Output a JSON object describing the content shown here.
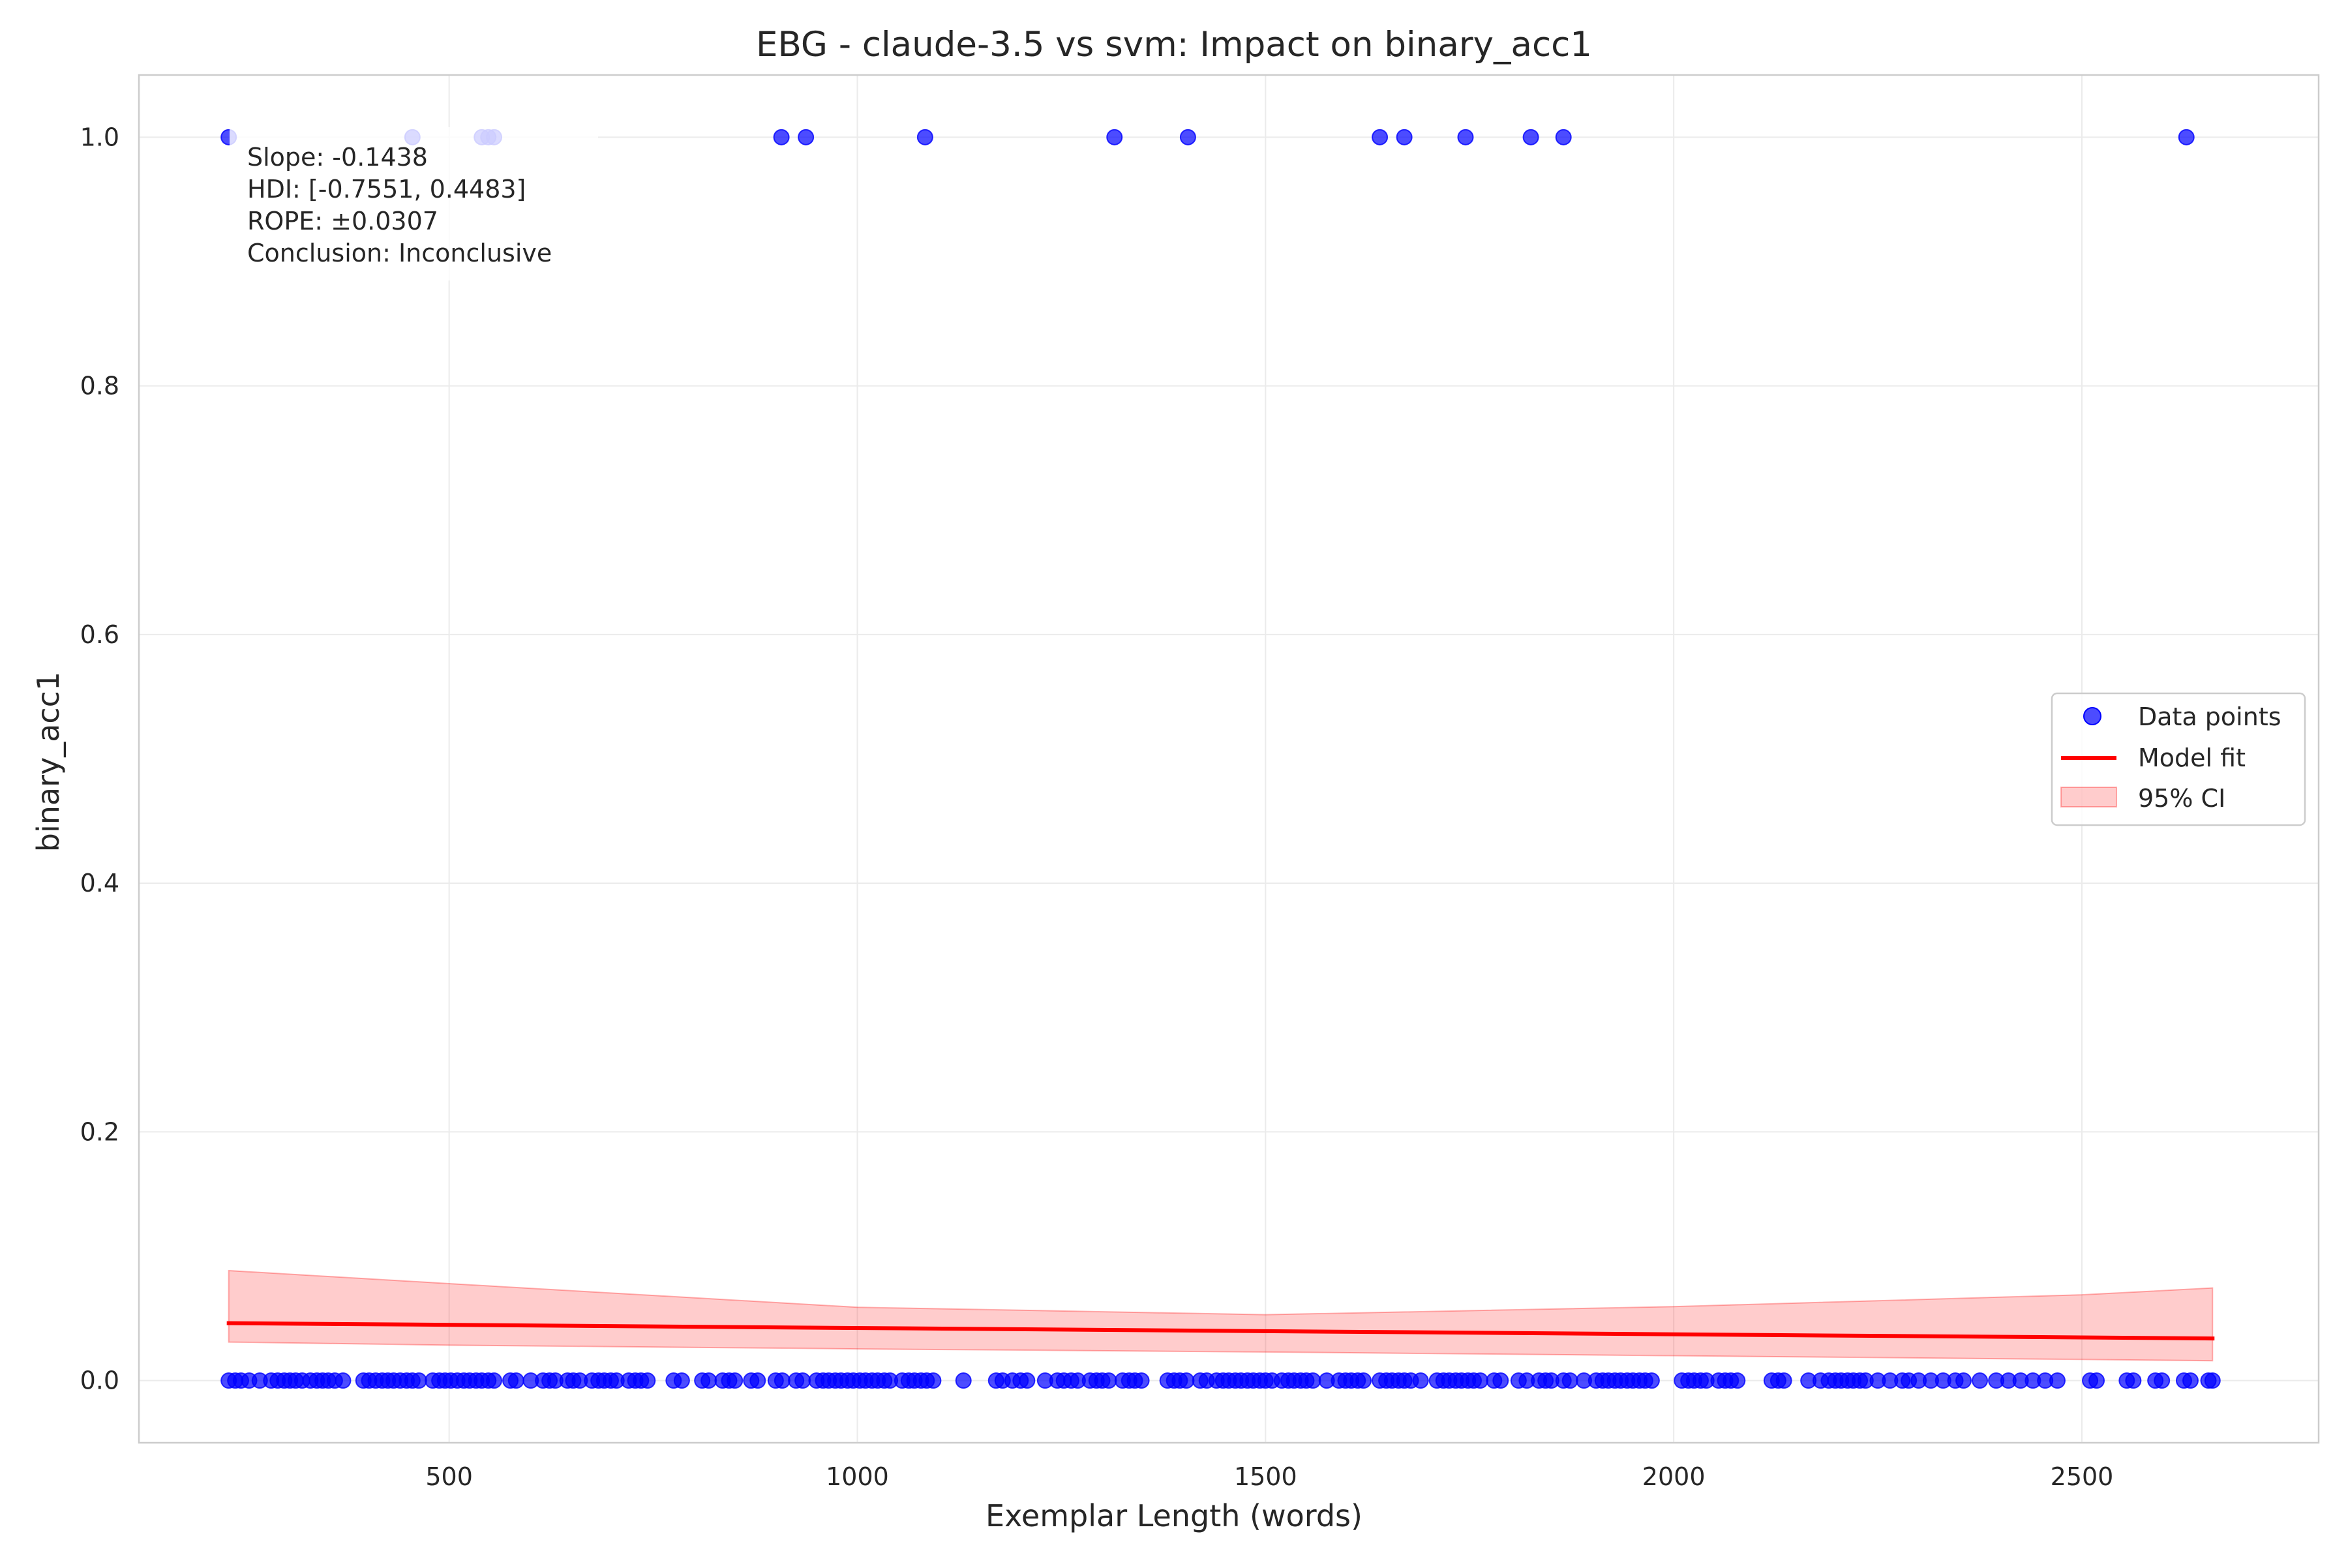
{
  "chart_data": {
    "type": "scatter",
    "title": "EBG - claude-3.5 vs svm: Impact on binary_acc1",
    "xlabel": "Exemplar Length (words)",
    "ylabel": "binary_acc1",
    "xlim": [
      120,
      2790
    ],
    "ylim": [
      -0.05,
      1.05
    ],
    "xticks": [
      500,
      1000,
      1500,
      2000,
      2500
    ],
    "yticks": [
      0.0,
      0.2,
      0.4,
      0.6,
      0.8,
      1.0
    ],
    "xtick_labels": [
      "500",
      "1000",
      "1500",
      "2000",
      "2500"
    ],
    "ytick_labels": [
      "0.0",
      "0.2",
      "0.4",
      "0.6",
      "0.8",
      "1.0"
    ],
    "grid": true,
    "legend_position": "center-right",
    "legend": [
      {
        "label": "Data points",
        "kind": "marker",
        "color": "#0000ff"
      },
      {
        "label": "Model fit",
        "kind": "line",
        "color": "#ff0000"
      },
      {
        "label": "95% CI",
        "kind": "patch",
        "color": "#ff0000"
      }
    ],
    "annotation": [
      "Slope: -0.1438",
      "HDI: [-0.7551, 0.4483]",
      "ROPE: ±0.0307",
      "Conclusion: Inconclusive"
    ],
    "series": [
      {
        "name": "Data points",
        "kind": "scatter",
        "color": "#0000ff",
        "points_y1": [
          230,
          455,
          540,
          548,
          555,
          907,
          937,
          1083,
          1315,
          1405,
          1640,
          1670,
          1745,
          1825,
          1865,
          2628
        ],
        "points_y0": [
          230,
          238,
          245,
          255,
          268,
          282,
          290,
          298,
          305,
          312,
          320,
          330,
          338,
          345,
          352,
          360,
          370,
          395,
          402,
          410,
          418,
          425,
          432,
          440,
          448,
          455,
          463,
          480,
          488,
          495,
          502,
          510,
          518,
          525,
          533,
          540,
          548,
          555,
          575,
          582,
          600,
          615,
          623,
          630,
          645,
          652,
          660,
          675,
          683,
          690,
          698,
          705,
          720,
          728,
          735,
          743,
          775,
          785,
          810,
          818,
          835,
          843,
          850,
          870,
          878,
          900,
          908,
          925,
          933,
          950,
          958,
          965,
          973,
          980,
          988,
          995,
          1003,
          1010,
          1018,
          1025,
          1033,
          1040,
          1055,
          1063,
          1070,
          1078,
          1085,
          1093,
          1130,
          1170,
          1178,
          1190,
          1200,
          1208,
          1230,
          1245,
          1253,
          1262,
          1270,
          1285,
          1293,
          1300,
          1308,
          1325,
          1333,
          1340,
          1348,
          1380,
          1388,
          1395,
          1403,
          1420,
          1428,
          1440,
          1448,
          1455,
          1463,
          1470,
          1478,
          1485,
          1493,
          1500,
          1508,
          1520,
          1528,
          1535,
          1543,
          1550,
          1558,
          1575,
          1590,
          1598,
          1605,
          1613,
          1620,
          1640,
          1648,
          1655,
          1663,
          1670,
          1678,
          1690,
          1710,
          1718,
          1725,
          1733,
          1740,
          1748,
          1755,
          1763,
          1780,
          1788,
          1810,
          1820,
          1835,
          1843,
          1850,
          1865,
          1873,
          1890,
          1905,
          1913,
          1920,
          1928,
          1935,
          1943,
          1950,
          1958,
          1965,
          1973,
          2010,
          2018,
          2025,
          2033,
          2040,
          2055,
          2063,
          2070,
          2078,
          2120,
          2128,
          2135,
          2165,
          2180,
          2190,
          2198,
          2205,
          2213,
          2220,
          2228,
          2235,
          2250,
          2265,
          2280,
          2288,
          2300,
          2315,
          2330,
          2345,
          2355,
          2375,
          2395,
          2410,
          2425,
          2440,
          2455,
          2470,
          2510,
          2518,
          2555,
          2563,
          2590,
          2598,
          2625,
          2633,
          2655,
          2660
        ]
      },
      {
        "name": "Model fit",
        "kind": "line",
        "color": "#ff0000",
        "x": [
          230,
          2660
        ],
        "y": [
          0.0462,
          0.0339
        ]
      },
      {
        "name": "95% CI",
        "kind": "band",
        "color": "#ff0000",
        "x": [
          230,
          500,
          1000,
          1500,
          2000,
          2500,
          2660
        ],
        "upper": [
          0.0885,
          0.078,
          0.059,
          0.053,
          0.0595,
          0.069,
          0.0745
        ],
        "lower": [
          0.031,
          0.0285,
          0.0255,
          0.023,
          0.02,
          0.017,
          0.016
        ]
      }
    ]
  }
}
